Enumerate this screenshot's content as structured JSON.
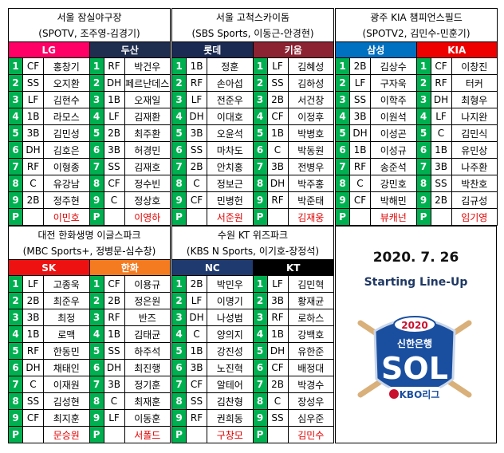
{
  "games": [
    {
      "venue": "서울 잠실야구장",
      "broadcast": "(SPOTV, 조주영-김경기)",
      "teams": [
        {
          "name": "LG",
          "color": "#ff0066",
          "lineup": [
            [
              "1",
              "CF",
              "홍창기"
            ],
            [
              "2",
              "SS",
              "오지환"
            ],
            [
              "3",
              "LF",
              "김현수"
            ],
            [
              "4",
              "1B",
              "라모스"
            ],
            [
              "5",
              "3B",
              "김민성"
            ],
            [
              "6",
              "DH",
              "김호은"
            ],
            [
              "7",
              "RF",
              "이형종"
            ],
            [
              "8",
              "C",
              "유강남"
            ],
            [
              "9",
              "2B",
              "정주현"
            ]
          ],
          "pitcher": [
            "P",
            "이민호"
          ]
        },
        {
          "name": "두산",
          "color": "#1f2d4f",
          "lineup": [
            [
              "1",
              "RF",
              "박건우"
            ],
            [
              "2",
              "DH",
              "페르난데스"
            ],
            [
              "3",
              "1B",
              "오재일"
            ],
            [
              "4",
              "LF",
              "김재환"
            ],
            [
              "5",
              "2B",
              "최주환"
            ],
            [
              "6",
              "3B",
              "허경민"
            ],
            [
              "7",
              "SS",
              "김재호"
            ],
            [
              "8",
              "CF",
              "정수빈"
            ],
            [
              "9",
              "C",
              "정상호"
            ]
          ],
          "pitcher": [
            "P",
            "이영하"
          ]
        }
      ]
    },
    {
      "venue": "서울 고척스카이돔",
      "broadcast": "(SBS Sports, 이동근-안경현)",
      "teams": [
        {
          "name": "롯데",
          "color": "#1b2a52",
          "lineup": [
            [
              "1",
              "1B",
              "정훈"
            ],
            [
              "2",
              "RF",
              "손아섭"
            ],
            [
              "3",
              "LF",
              "전준우"
            ],
            [
              "4",
              "DH",
              "이대호"
            ],
            [
              "5",
              "3B",
              "오윤석"
            ],
            [
              "6",
              "SS",
              "마차도"
            ],
            [
              "7",
              "2B",
              "안치홍"
            ],
            [
              "8",
              "C",
              "정보근"
            ],
            [
              "9",
              "CF",
              "민병헌"
            ]
          ],
          "pitcher": [
            "P",
            "서준원"
          ]
        },
        {
          "name": "키움",
          "color": "#8c2332",
          "lineup": [
            [
              "1",
              "LF",
              "김혜성"
            ],
            [
              "2",
              "SS",
              "김하성"
            ],
            [
              "3",
              "2B",
              "서건창"
            ],
            [
              "4",
              "CF",
              "이정후"
            ],
            [
              "5",
              "1B",
              "박병호"
            ],
            [
              "6",
              "C",
              "박동원"
            ],
            [
              "7",
              "3B",
              "전병우"
            ],
            [
              "8",
              "DH",
              "박주홍"
            ],
            [
              "9",
              "RF",
              "박준태"
            ]
          ],
          "pitcher": [
            "P",
            "김재웅"
          ]
        }
      ]
    },
    {
      "venue": "광주 KIA 챔피언스필드",
      "broadcast": "(SPOTV2, 김민수-민훈기)",
      "teams": [
        {
          "name": "삼성",
          "color": "#0070c0",
          "lineup": [
            [
              "1",
              "2B",
              "김상수"
            ],
            [
              "2",
              "LF",
              "구자욱"
            ],
            [
              "3",
              "SS",
              "이학주"
            ],
            [
              "4",
              "3B",
              "이원석"
            ],
            [
              "5",
              "DH",
              "이성곤"
            ],
            [
              "6",
              "1B",
              "이성규"
            ],
            [
              "7",
              "RF",
              "송준석"
            ],
            [
              "8",
              "C",
              "강민호"
            ],
            [
              "9",
              "CF",
              "박해민"
            ]
          ],
          "pitcher": [
            "P",
            "뷰캐넌"
          ]
        },
        {
          "name": "KIA",
          "color": "#ee0000",
          "lineup": [
            [
              "1",
              "CF",
              "이창진"
            ],
            [
              "2",
              "RF",
              "터커"
            ],
            [
              "3",
              "DH",
              "최형우"
            ],
            [
              "4",
              "LF",
              "나지완"
            ],
            [
              "5",
              "C",
              "김민식"
            ],
            [
              "6",
              "1B",
              "유민상"
            ],
            [
              "7",
              "3B",
              "나주환"
            ],
            [
              "8",
              "SS",
              "박찬호"
            ],
            [
              "9",
              "2B",
              "김규성"
            ]
          ],
          "pitcher": [
            "P",
            "임기영"
          ]
        }
      ]
    },
    {
      "venue": "대전 한화생명 이글스파크",
      "broadcast": "(MBC Sports+, 정병문-심수창)",
      "teams": [
        {
          "name": "SK",
          "color": "#ee1111",
          "lineup": [
            [
              "1",
              "LF",
              "고종욱"
            ],
            [
              "2",
              "2B",
              "최준우"
            ],
            [
              "3",
              "3B",
              "최정"
            ],
            [
              "4",
              "1B",
              "로맥"
            ],
            [
              "5",
              "RF",
              "한동민"
            ],
            [
              "6",
              "DH",
              "채태인"
            ],
            [
              "7",
              "C",
              "이재원"
            ],
            [
              "8",
              "SS",
              "김성현"
            ],
            [
              "9",
              "CF",
              "최지훈"
            ]
          ],
          "pitcher": [
            "P",
            "문승원"
          ]
        },
        {
          "name": "한화",
          "color": "#f47b20",
          "lineup": [
            [
              "1",
              "CF",
              "이용규"
            ],
            [
              "2",
              "2B",
              "정은원"
            ],
            [
              "3",
              "RF",
              "반즈"
            ],
            [
              "4",
              "1B",
              "김태균"
            ],
            [
              "5",
              "SS",
              "하주석"
            ],
            [
              "6",
              "DH",
              "최진행"
            ],
            [
              "7",
              "3B",
              "정기훈"
            ],
            [
              "8",
              "C",
              "최재훈"
            ],
            [
              "9",
              "LF",
              "이동훈"
            ]
          ],
          "pitcher": [
            "P",
            "서폴드"
          ]
        }
      ]
    },
    {
      "venue": "수원 KT 위즈파크",
      "broadcast": "(KBS N Sports, 이기호-장정석)",
      "teams": [
        {
          "name": "NC",
          "color": "#1f3a6e",
          "lineup": [
            [
              "1",
              "2B",
              "박민우"
            ],
            [
              "2",
              "LF",
              "이명기"
            ],
            [
              "3",
              "DH",
              "나성범"
            ],
            [
              "4",
              "C",
              "양의지"
            ],
            [
              "5",
              "1B",
              "강진성"
            ],
            [
              "6",
              "3B",
              "노진혁"
            ],
            [
              "7",
              "CF",
              "알테어"
            ],
            [
              "8",
              "SS",
              "김찬형"
            ],
            [
              "9",
              "RF",
              "권희동"
            ]
          ],
          "pitcher": [
            "P",
            "구창모"
          ]
        },
        {
          "name": "KT",
          "color": "#000000",
          "lineup": [
            [
              "1",
              "LF",
              "김민혁"
            ],
            [
              "2",
              "3B",
              "황재균"
            ],
            [
              "3",
              "RF",
              "로하스"
            ],
            [
              "4",
              "1B",
              "강백호"
            ],
            [
              "5",
              "DH",
              "유한준"
            ],
            [
              "6",
              "CF",
              "배정대"
            ],
            [
              "7",
              "2B",
              "박경수"
            ],
            [
              "8",
              "C",
              "장성우"
            ],
            [
              "9",
              "SS",
              "심우준"
            ]
          ],
          "pitcher": [
            "P",
            "김민수"
          ]
        }
      ]
    }
  ],
  "date": "2020. 7. 26",
  "subtitle": "Starting Line-Up",
  "logo": {
    "year": "2020",
    "sponsor": "신한은행",
    "brand": "SOL",
    "league": "KBO리그"
  }
}
